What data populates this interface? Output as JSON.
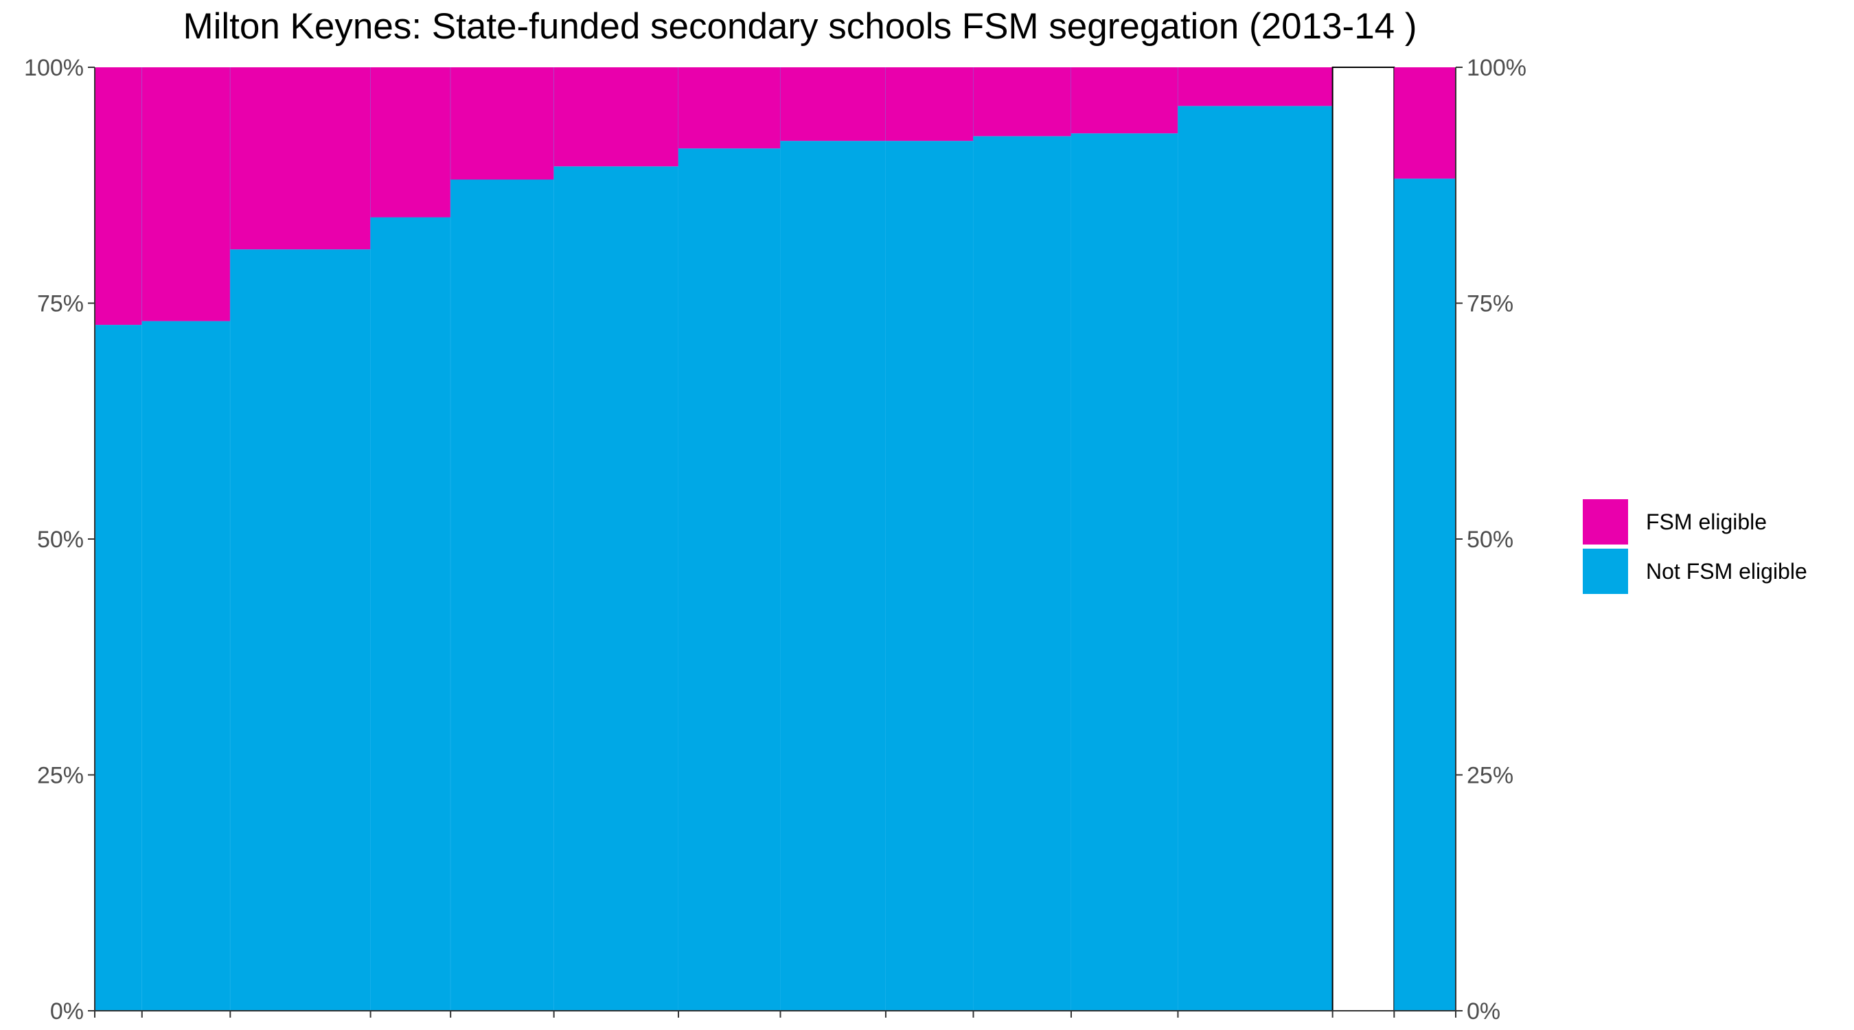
{
  "chart_data": {
    "type": "bar",
    "subtype": "stacked-100-marimekko",
    "title": "Milton Keynes: State-funded secondary schools FSM segregation (2013-14 )",
    "xlabel": "",
    "ylabel": "",
    "ylim": [
      0,
      100
    ],
    "y_ticks": [
      "0%",
      "25%",
      "50%",
      "75%",
      "100%"
    ],
    "y_tick_values": [
      0,
      25,
      50,
      75,
      100
    ],
    "secondary_y_axis": true,
    "colors": {
      "fsm": "#e900ac",
      "not_fsm": "#00a8e6"
    },
    "series": [
      {
        "name": "FSM eligible",
        "color": "#e900ac",
        "values": [
          27.3,
          26.9,
          19.3,
          15.9,
          11.9,
          10.5,
          8.6,
          7.8,
          7.8,
          7.3,
          7.0,
          4.1,
          null,
          11.8
        ]
      },
      {
        "name": "Not FSM eligible",
        "color": "#00a8e6",
        "values": [
          72.7,
          73.1,
          80.7,
          84.1,
          88.1,
          89.5,
          91.4,
          92.2,
          92.2,
          92.7,
          93.0,
          95.9,
          null,
          88.2
        ]
      }
    ],
    "relative_widths": [
      0.69,
      1.29,
      2.05,
      1.17,
      1.51,
      1.82,
      1.49,
      1.54,
      1.28,
      1.43,
      1.56,
      2.26,
      0.9,
      0.9
    ],
    "bar_kinds": [
      "school",
      "school",
      "school",
      "school",
      "school",
      "school",
      "school",
      "school",
      "school",
      "school",
      "school",
      "school",
      "gap",
      "total"
    ],
    "legend": {
      "position": "right",
      "entries": [
        "FSM eligible",
        "Not FSM eligible"
      ]
    }
  }
}
